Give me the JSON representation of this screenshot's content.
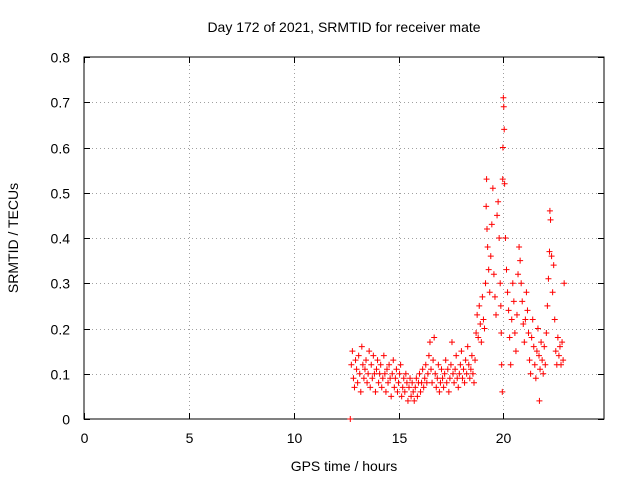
{
  "chart_data": {
    "type": "scatter",
    "title": "Day 172 of 2021, SRMTID for receiver mate",
    "xlabel": "GPS time / hours",
    "ylabel": "SRMTID / TECUs",
    "xlim": [
      0,
      24.8
    ],
    "ylim": [
      0,
      0.8
    ],
    "xticks": [
      0,
      5,
      10,
      15,
      20
    ],
    "xtick_labels": [
      "0",
      "5",
      "10",
      "15",
      "20"
    ],
    "yticks": [
      0,
      0.1,
      0.2,
      0.3,
      0.4,
      0.5,
      0.6,
      0.7,
      0.8
    ],
    "ytick_labels": [
      "0",
      "0.1",
      "0.2",
      "0.3",
      "0.4",
      "0.5",
      "0.6",
      "0.7",
      "0.8"
    ],
    "grid": true,
    "marker": "+",
    "color": "#ff0000",
    "series": [
      {
        "name": "SRMTID",
        "points": [
          [
            12.7,
            0.0
          ],
          [
            12.75,
            0.12
          ],
          [
            12.8,
            0.15
          ],
          [
            12.85,
            0.09
          ],
          [
            12.9,
            0.07
          ],
          [
            12.95,
            0.13
          ],
          [
            13.0,
            0.11
          ],
          [
            13.05,
            0.08
          ],
          [
            13.1,
            0.14
          ],
          [
            13.15,
            0.1
          ],
          [
            13.2,
            0.06
          ],
          [
            13.25,
            0.16
          ],
          [
            13.3,
            0.12
          ],
          [
            13.35,
            0.09
          ],
          [
            13.4,
            0.11
          ],
          [
            13.45,
            0.13
          ],
          [
            13.5,
            0.08
          ],
          [
            13.55,
            0.1
          ],
          [
            13.6,
            0.15
          ],
          [
            13.65,
            0.07
          ],
          [
            13.7,
            0.12
          ],
          [
            13.75,
            0.09
          ],
          [
            13.8,
            0.14
          ],
          [
            13.85,
            0.1
          ],
          [
            13.9,
            0.06
          ],
          [
            13.95,
            0.11
          ],
          [
            14.0,
            0.13
          ],
          [
            14.05,
            0.08
          ],
          [
            14.1,
            0.1
          ],
          [
            14.15,
            0.12
          ],
          [
            14.2,
            0.07
          ],
          [
            14.25,
            0.09
          ],
          [
            14.3,
            0.14
          ],
          [
            14.35,
            0.1
          ],
          [
            14.4,
            0.06
          ],
          [
            14.45,
            0.11
          ],
          [
            14.5,
            0.08
          ],
          [
            14.55,
            0.12
          ],
          [
            14.6,
            0.09
          ],
          [
            14.65,
            0.05
          ],
          [
            14.7,
            0.1
          ],
          [
            14.75,
            0.13
          ],
          [
            14.8,
            0.07
          ],
          [
            14.85,
            0.09
          ],
          [
            14.9,
            0.11
          ],
          [
            14.95,
            0.06
          ],
          [
            15.0,
            0.08
          ],
          [
            15.05,
            0.1
          ],
          [
            15.1,
            0.12
          ],
          [
            15.15,
            0.05
          ],
          [
            15.2,
            0.07
          ],
          [
            15.25,
            0.09
          ],
          [
            15.3,
            0.06
          ],
          [
            15.35,
            0.1
          ],
          [
            15.4,
            0.08
          ],
          [
            15.45,
            0.04
          ],
          [
            15.5,
            0.07
          ],
          [
            15.55,
            0.09
          ],
          [
            15.6,
            0.05
          ],
          [
            15.65,
            0.08
          ],
          [
            15.7,
            0.06
          ],
          [
            15.75,
            0.04
          ],
          [
            15.8,
            0.07
          ],
          [
            15.85,
            0.09
          ],
          [
            15.9,
            0.05
          ],
          [
            15.95,
            0.08
          ],
          [
            16.0,
            0.1
          ],
          [
            16.05,
            0.06
          ],
          [
            16.1,
            0.08
          ],
          [
            16.15,
            0.11
          ],
          [
            16.2,
            0.07
          ],
          [
            16.25,
            0.09
          ],
          [
            16.3,
            0.12
          ],
          [
            16.35,
            0.08
          ],
          [
            16.4,
            0.1
          ],
          [
            16.45,
            0.14
          ],
          [
            16.5,
            0.17
          ],
          [
            16.55,
            0.11
          ],
          [
            16.6,
            0.08
          ],
          [
            16.65,
            0.13
          ],
          [
            16.7,
            0.18
          ],
          [
            16.75,
            0.1
          ],
          [
            16.8,
            0.07
          ],
          [
            16.85,
            0.09
          ],
          [
            16.9,
            0.12
          ],
          [
            16.95,
            0.06
          ],
          [
            17.0,
            0.08
          ],
          [
            17.05,
            0.11
          ],
          [
            17.1,
            0.09
          ],
          [
            17.15,
            0.07
          ],
          [
            17.2,
            0.1
          ],
          [
            17.25,
            0.13
          ],
          [
            17.3,
            0.08
          ],
          [
            17.35,
            0.11
          ],
          [
            17.4,
            0.06
          ],
          [
            17.45,
            0.09
          ],
          [
            17.5,
            0.12
          ],
          [
            17.55,
            0.17
          ],
          [
            17.6,
            0.1
          ],
          [
            17.65,
            0.08
          ],
          [
            17.7,
            0.11
          ],
          [
            17.75,
            0.14
          ],
          [
            17.8,
            0.09
          ],
          [
            17.85,
            0.07
          ],
          [
            17.9,
            0.1
          ],
          [
            17.95,
            0.12
          ],
          [
            18.0,
            0.15
          ],
          [
            18.05,
            0.09
          ],
          [
            18.1,
            0.11
          ],
          [
            18.15,
            0.08
          ],
          [
            18.2,
            0.13
          ],
          [
            18.25,
            0.1
          ],
          [
            18.3,
            0.16
          ],
          [
            18.35,
            0.12
          ],
          [
            18.4,
            0.09
          ],
          [
            18.45,
            0.11
          ],
          [
            18.5,
            0.14
          ],
          [
            18.55,
            0.1
          ],
          [
            18.6,
            0.08
          ],
          [
            18.65,
            0.13
          ],
          [
            18.7,
            0.19
          ],
          [
            18.75,
            0.23
          ],
          [
            18.8,
            0.18
          ],
          [
            18.85,
            0.25
          ],
          [
            18.9,
            0.21
          ],
          [
            18.95,
            0.17
          ],
          [
            19.0,
            0.27
          ],
          [
            19.05,
            0.22
          ],
          [
            19.1,
            0.2
          ],
          [
            19.15,
            0.3
          ],
          [
            19.18,
            0.47
          ],
          [
            19.2,
            0.53
          ],
          [
            19.22,
            0.42
          ],
          [
            19.25,
            0.38
          ],
          [
            19.3,
            0.33
          ],
          [
            19.35,
            0.28
          ],
          [
            19.4,
            0.36
          ],
          [
            19.45,
            0.43
          ],
          [
            19.5,
            0.51
          ],
          [
            19.55,
            0.32
          ],
          [
            19.6,
            0.27
          ],
          [
            19.65,
            0.23
          ],
          [
            19.7,
            0.45
          ],
          [
            19.75,
            0.48
          ],
          [
            19.8,
            0.4
          ],
          [
            19.85,
            0.3
          ],
          [
            19.88,
            0.25
          ],
          [
            19.9,
            0.19
          ],
          [
            19.92,
            0.12
          ],
          [
            19.95,
            0.06
          ],
          [
            19.97,
            0.53
          ],
          [
            19.98,
            0.6
          ],
          [
            20.0,
            0.71
          ],
          [
            20.02,
            0.69
          ],
          [
            20.04,
            0.64
          ],
          [
            20.06,
            0.52
          ],
          [
            20.1,
            0.4
          ],
          [
            20.15,
            0.33
          ],
          [
            20.2,
            0.28
          ],
          [
            20.25,
            0.24
          ],
          [
            20.3,
            0.18
          ],
          [
            20.35,
            0.12
          ],
          [
            20.4,
            0.22
          ],
          [
            20.45,
            0.3
          ],
          [
            20.5,
            0.26
          ],
          [
            20.55,
            0.19
          ],
          [
            20.6,
            0.15
          ],
          [
            20.65,
            0.23
          ],
          [
            20.7,
            0.32
          ],
          [
            20.75,
            0.38
          ],
          [
            20.8,
            0.35
          ],
          [
            20.85,
            0.3
          ],
          [
            20.9,
            0.26
          ],
          [
            20.95,
            0.21
          ],
          [
            21.0,
            0.17
          ],
          [
            21.05,
            0.22
          ],
          [
            21.1,
            0.28
          ],
          [
            21.15,
            0.24
          ],
          [
            21.2,
            0.19
          ],
          [
            21.25,
            0.13
          ],
          [
            21.3,
            0.1
          ],
          [
            21.35,
            0.18
          ],
          [
            21.4,
            0.22
          ],
          [
            21.45,
            0.16
          ],
          [
            21.5,
            0.12
          ],
          [
            21.55,
            0.09
          ],
          [
            21.6,
            0.15
          ],
          [
            21.65,
            0.2
          ],
          [
            21.7,
            0.14
          ],
          [
            21.72,
            0.04
          ],
          [
            21.75,
            0.11
          ],
          [
            21.8,
            0.17
          ],
          [
            21.85,
            0.13
          ],
          [
            21.9,
            0.1
          ],
          [
            21.95,
            0.16
          ],
          [
            22.0,
            0.12
          ],
          [
            22.05,
            0.19
          ],
          [
            22.1,
            0.25
          ],
          [
            22.15,
            0.31
          ],
          [
            22.2,
            0.37
          ],
          [
            22.22,
            0.46
          ],
          [
            22.25,
            0.44
          ],
          [
            22.3,
            0.36
          ],
          [
            22.35,
            0.28
          ],
          [
            22.4,
            0.34
          ],
          [
            22.45,
            0.22
          ],
          [
            22.5,
            0.15
          ],
          [
            22.55,
            0.12
          ],
          [
            22.6,
            0.18
          ],
          [
            22.65,
            0.14
          ],
          [
            22.7,
            0.16
          ],
          [
            22.75,
            0.12
          ],
          [
            22.8,
            0.17
          ],
          [
            22.85,
            0.13
          ],
          [
            22.9,
            0.3
          ]
        ]
      }
    ]
  }
}
